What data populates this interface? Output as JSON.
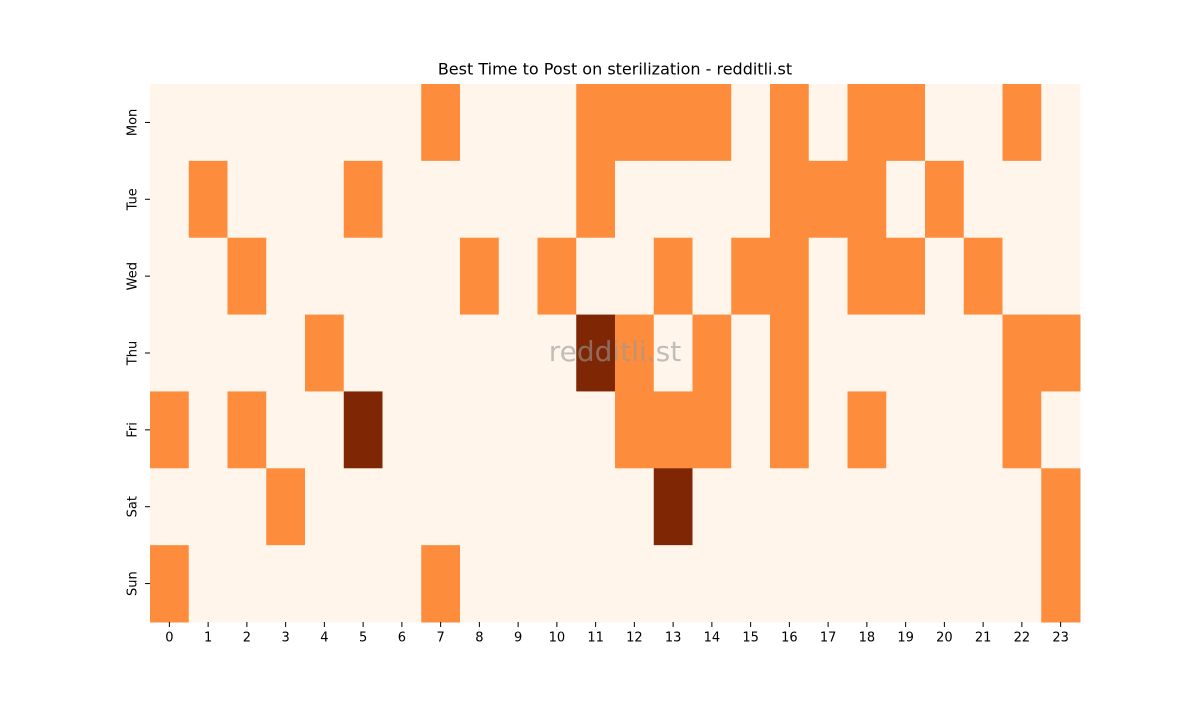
{
  "chart_data": {
    "type": "heatmap",
    "title": "Best Time to Post on sterilization - redditli.st",
    "watermark": "redditli.st",
    "categories": [
      "0",
      "1",
      "2",
      "3",
      "4",
      "5",
      "6",
      "7",
      "8",
      "9",
      "10",
      "11",
      "12",
      "13",
      "14",
      "15",
      "16",
      "17",
      "18",
      "19",
      "20",
      "21",
      "22",
      "23"
    ],
    "rows": [
      "Mon",
      "Tue",
      "Wed",
      "Thu",
      "Fri",
      "Sat",
      "Sun"
    ],
    "values": [
      [
        0,
        0,
        0,
        0,
        0,
        0,
        0,
        1,
        0,
        0,
        0,
        1,
        1,
        1,
        1,
        0,
        1,
        0,
        1,
        1,
        0,
        0,
        1,
        0
      ],
      [
        0,
        1,
        0,
        0,
        0,
        1,
        0,
        0,
        0,
        0,
        0,
        1,
        0,
        0,
        0,
        0,
        1,
        1,
        1,
        0,
        1,
        0,
        0,
        0
      ],
      [
        0,
        0,
        1,
        0,
        0,
        0,
        0,
        0,
        1,
        0,
        1,
        0,
        0,
        1,
        0,
        1,
        1,
        0,
        1,
        1,
        0,
        1,
        0,
        0
      ],
      [
        0,
        0,
        0,
        0,
        1,
        0,
        0,
        0,
        0,
        0,
        0,
        2,
        1,
        0,
        1,
        0,
        1,
        0,
        0,
        0,
        0,
        0,
        1,
        1
      ],
      [
        1,
        0,
        1,
        0,
        0,
        2,
        0,
        0,
        0,
        0,
        0,
        0,
        1,
        1,
        1,
        0,
        1,
        0,
        1,
        0,
        0,
        0,
        1,
        0
      ],
      [
        0,
        0,
        0,
        1,
        0,
        0,
        0,
        0,
        0,
        0,
        0,
        0,
        0,
        2,
        0,
        0,
        0,
        0,
        0,
        0,
        0,
        0,
        0,
        1
      ],
      [
        1,
        0,
        0,
        0,
        0,
        0,
        0,
        1,
        0,
        0,
        0,
        0,
        0,
        0,
        0,
        0,
        0,
        0,
        0,
        0,
        0,
        0,
        0,
        1
      ]
    ],
    "zlim": [
      0,
      2
    ],
    "colors": [
      "#fff5eb",
      "#fd8d3c",
      "#7f2704"
    ]
  }
}
